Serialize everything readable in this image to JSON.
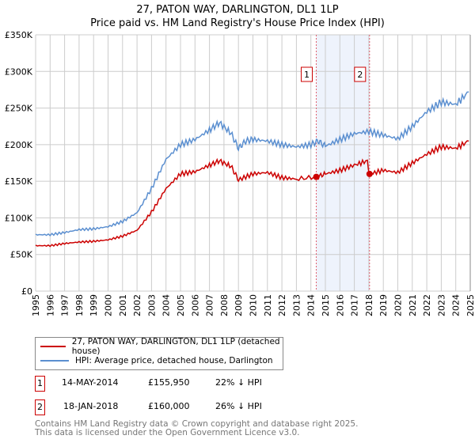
{
  "chart_data": {
    "type": "line",
    "title": "27, PATON WAY, DARLINGTON, DL1 1LP",
    "subtitle": "Price paid vs. HM Land Registry's House Price Index (HPI)",
    "xlim": [
      1995,
      2025
    ],
    "ylim": [
      0,
      350000
    ],
    "x_ticks": [
      "1995",
      "1996",
      "1997",
      "1998",
      "1999",
      "2000",
      "2001",
      "2002",
      "2003",
      "2004",
      "2005",
      "2006",
      "2007",
      "2008",
      "2009",
      "2010",
      "2011",
      "2012",
      "2013",
      "2014",
      "2015",
      "2016",
      "2017",
      "2018",
      "2019",
      "2020",
      "2021",
      "2022",
      "2023",
      "2024",
      "2025"
    ],
    "y_ticks": [
      {
        "v": 0,
        "label": "£0"
      },
      {
        "v": 50000,
        "label": "£50K"
      },
      {
        "v": 100000,
        "label": "£100K"
      },
      {
        "v": 150000,
        "label": "£150K"
      },
      {
        "v": 200000,
        "label": "£200K"
      },
      {
        "v": 250000,
        "label": "£250K"
      },
      {
        "v": 300000,
        "label": "£300K"
      },
      {
        "v": 350000,
        "label": "£350K"
      }
    ],
    "grid": true,
    "series": [
      {
        "name": "27, PATON WAY, DARLINGTON, DL1 1LP (detached house)",
        "color": "#cc0000",
        "x": [
          1995,
          1996,
          1997,
          1998,
          1999,
          2000,
          2001,
          2002,
          2003,
          2004,
          2005,
          2006,
          2007,
          2007.7,
          2008.5,
          2009,
          2010,
          2011,
          2012,
          2013,
          2014.37,
          2015,
          2016,
          2017,
          2017.9,
          2018.05,
          2019,
          2020,
          2021,
          2022,
          2023,
          2024,
          2024.9
        ],
        "y": [
          62000,
          62000,
          65000,
          67000,
          68000,
          70000,
          75000,
          83000,
          108000,
          140000,
          160000,
          163000,
          172000,
          178000,
          170000,
          152000,
          160000,
          162000,
          155000,
          153000,
          155950,
          160000,
          165000,
          172000,
          178000,
          160000,
          165000,
          162000,
          175000,
          187000,
          197000,
          195000,
          205000
        ]
      },
      {
        "name": "HPI: Average price, detached house, Darlington",
        "color": "#5b8fd0",
        "x": [
          1995,
          1996,
          1997,
          1998,
          1999,
          2000,
          2001,
          2002,
          2003,
          2004,
          2005,
          2006,
          2007,
          2007.7,
          2008.5,
          2009,
          2009.5,
          2010,
          2011,
          2012,
          2013,
          2014,
          2014.5,
          2015,
          2016,
          2017,
          2018,
          2019,
          2020,
          2021,
          2022,
          2023,
          2024,
          2024.9
        ],
        "y": [
          77000,
          77000,
          80000,
          84000,
          85000,
          88000,
          95000,
          107000,
          140000,
          180000,
          200000,
          207000,
          220000,
          230000,
          215000,
          195000,
          205000,
          207000,
          205000,
          200000,
          197000,
          200000,
          205000,
          198000,
          207000,
          215000,
          218000,
          213000,
          208000,
          225000,
          245000,
          258000,
          255000,
          272000
        ]
      }
    ],
    "sales": [
      {
        "id": "1",
        "x": 2014.37,
        "price": 155950
      },
      {
        "id": "2",
        "x": 2018.05,
        "price": 160000
      }
    ]
  },
  "legend": {
    "red": "27, PATON WAY, DARLINGTON, DL1 1LP (detached house)",
    "blue": "HPI: Average price, detached house, Darlington"
  },
  "table": [
    {
      "id": "1",
      "date": "14-MAY-2014",
      "price": "£155,950",
      "delta": "22% ↓ HPI"
    },
    {
      "id": "2",
      "date": "18-JAN-2018",
      "price": "£160,000",
      "delta": "26% ↓ HPI"
    }
  ],
  "footer": [
    "Contains HM Land Registry data © Crown copyright and database right 2025.",
    "This data is licensed under the Open Government Licence v3.0."
  ]
}
